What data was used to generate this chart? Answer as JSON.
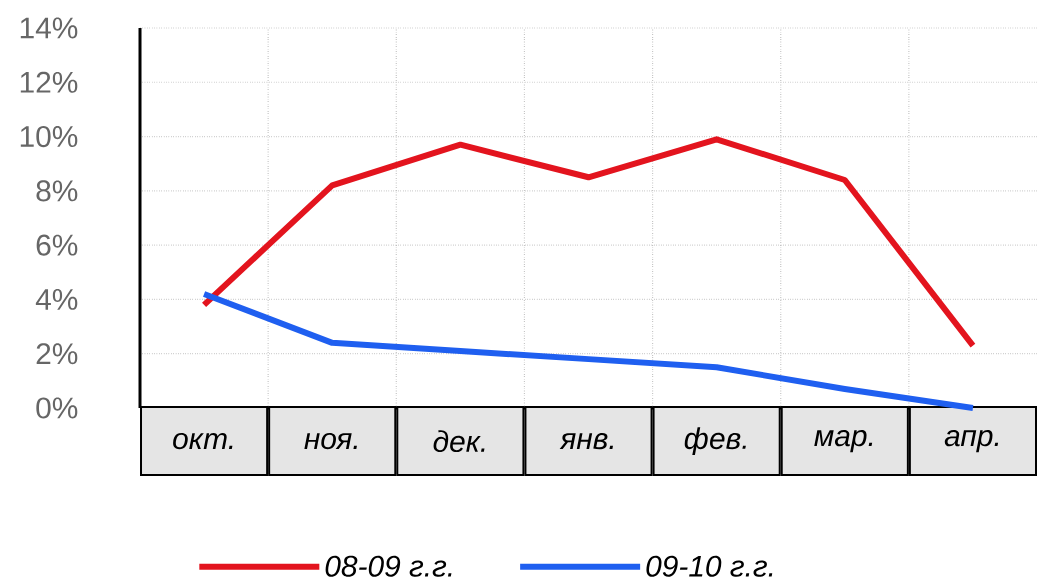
{
  "chart_data": {
    "type": "line",
    "categories": [
      "окт.",
      "ноя.",
      "дек.",
      "янв.",
      "фев.",
      "мар.",
      "апр."
    ],
    "series": [
      {
        "name": "08-09 г.г.",
        "color": "#e3141e",
        "values": [
          3.8,
          8.2,
          9.7,
          8.5,
          9.9,
          8.4,
          2.3
        ]
      },
      {
        "name": "09-10 г.г.",
        "color": "#1f5ff0",
        "values": [
          4.2,
          2.4,
          2.1,
          1.8,
          1.5,
          0.7,
          0.0
        ]
      }
    ],
    "ylim": [
      0,
      14
    ],
    "yticks": [
      {
        "value": 0,
        "label": "0%"
      },
      {
        "value": 2,
        "label": "2%"
      },
      {
        "value": 4,
        "label": "4%"
      },
      {
        "value": 6,
        "label": "6%"
      },
      {
        "value": 8,
        "label": "8%"
      },
      {
        "value": 10,
        "label": "10%"
      },
      {
        "value": 12,
        "label": "12%"
      },
      {
        "value": 14,
        "label": "14%"
      }
    ],
    "grid": true,
    "legend": "bottom",
    "marker": "none",
    "line_style": "solid"
  }
}
